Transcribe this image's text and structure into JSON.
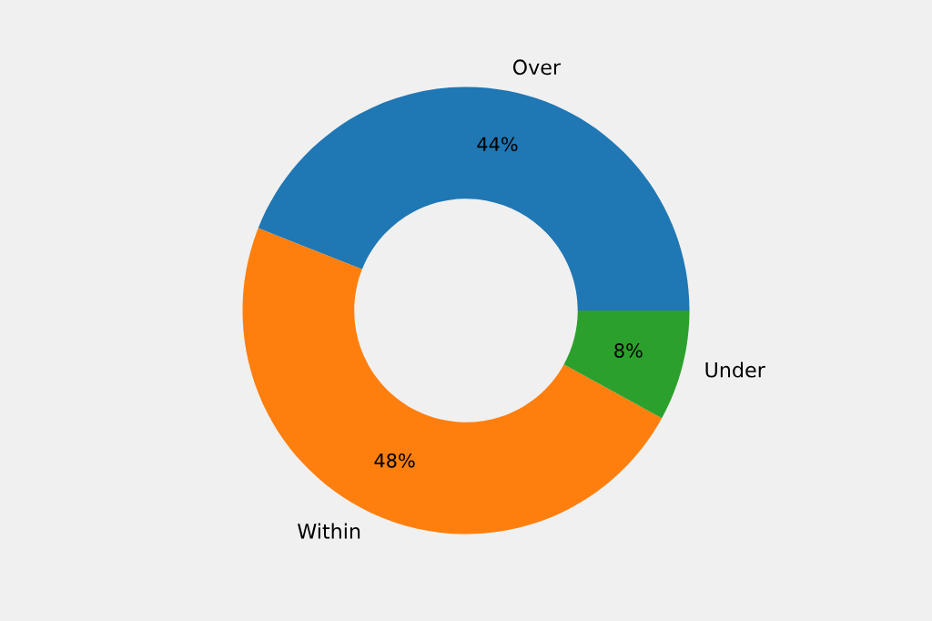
{
  "chart_data": {
    "type": "donut",
    "categories": [
      "Over",
      "Within",
      "Under"
    ],
    "values": [
      44,
      48,
      8
    ],
    "colors": [
      "#1f77b4",
      "#ff7f0e",
      "#2ca02c"
    ],
    "value_labels": [
      "44%",
      "48%",
      "8%"
    ]
  }
}
